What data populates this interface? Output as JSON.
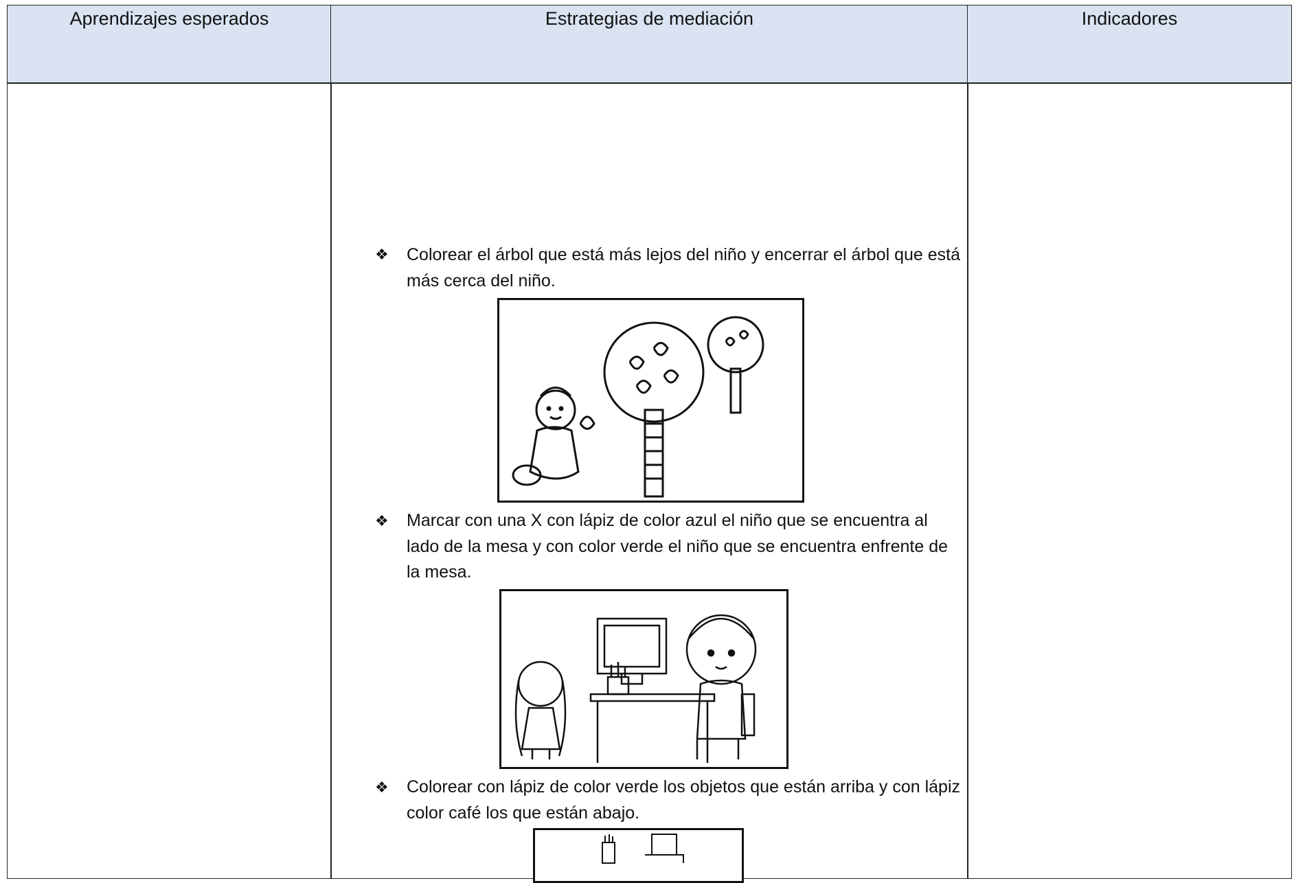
{
  "table": {
    "header": [
      "Aprendizajes esperados",
      "Estrategias de mediación",
      "Indicadores"
    ],
    "activities": [
      "Colorear el árbol que está más lejos del niño y encerrar el árbol que está más cerca del niño.",
      "Marcar con una X con lápiz de color azul el niño que se encuentra al lado de la mesa y con color verde el niño que se encuentra enfrente de la mesa.",
      "Colorear con lápiz de color verde los objetos que están arriba y con lápiz color café los que están abajo."
    ]
  }
}
